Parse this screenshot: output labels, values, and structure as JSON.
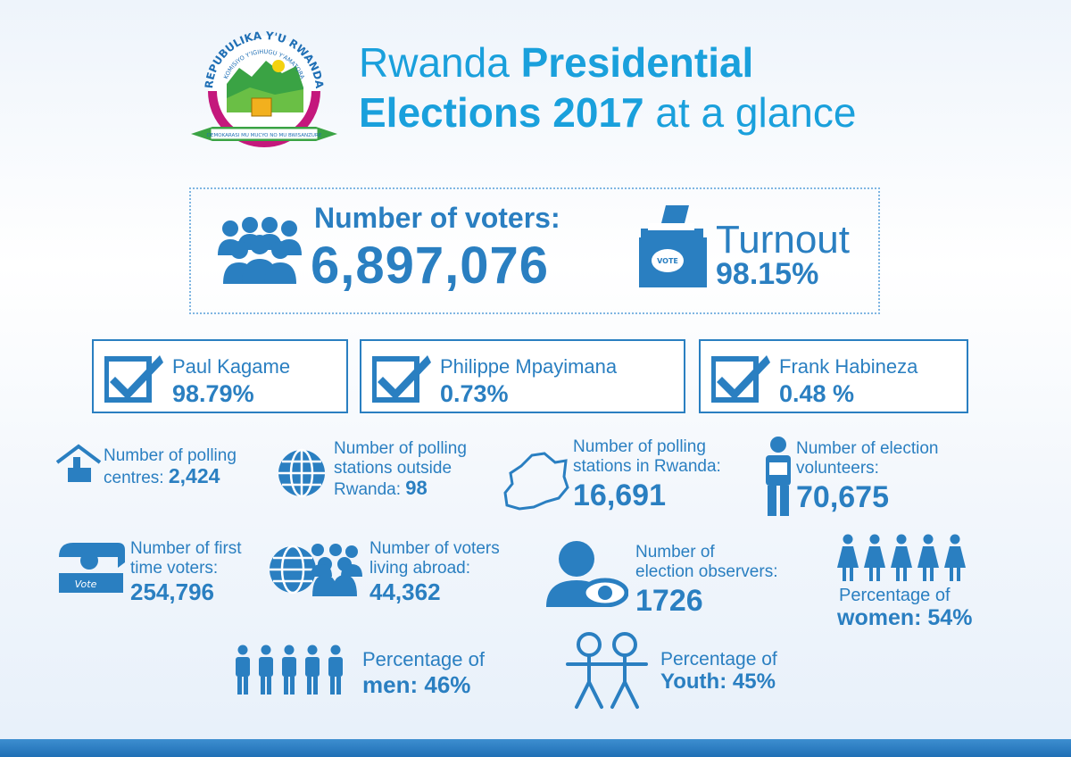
{
  "seal": {
    "top_text": "REPUBULIKA Y'U RWANDA",
    "inner_text": "KOMISIYO Y'IGIHUGU Y'AMATORA",
    "ribbon_text": "DEMOKARASI MU MUCYO NO MU BWISANZURE"
  },
  "title": {
    "line1_regular": "Rwanda ",
    "line1_bold": "Presidential",
    "line2_bold": "Elections 2017",
    "line2_regular": " at a glance"
  },
  "voters": {
    "label": "Number of voters:",
    "value": "6,897,076"
  },
  "turnout": {
    "label": "Turnout",
    "value": "98.15%",
    "ballot_text": "VOTE"
  },
  "candidates": [
    {
      "name": "Paul Kagame",
      "pct": "98.79%"
    },
    {
      "name": "Philippe Mpayimana",
      "pct": "0.73%"
    },
    {
      "name": "Frank Habineza",
      "pct": "0.48 %"
    }
  ],
  "stats": {
    "polling_centres": {
      "line1": "Number of polling",
      "line2": "centres:",
      "value": "2,424"
    },
    "stations_outside": {
      "line1": "Number of polling",
      "line2": "stations outside",
      "line3": "Rwanda:",
      "value": "98"
    },
    "stations_rwanda": {
      "line1": "Number of polling",
      "line2": "stations in Rwanda:",
      "value": "16,691"
    },
    "volunteers": {
      "line1": "Number of election",
      "line2": "volunteers:",
      "value": "70,675"
    },
    "first_time": {
      "line1": "Number of first",
      "line2": "time voters:",
      "value": "254,796",
      "icon_text": "Vote"
    },
    "abroad": {
      "line1": "Number of voters",
      "line2": "living abroad:",
      "value": "44,362"
    },
    "observers": {
      "line1": "Number of",
      "line2": "election observers:",
      "value": "1726"
    },
    "women": {
      "line1": "Percentage of",
      "label": "women:",
      "value": "54%"
    },
    "men": {
      "line1": "Percentage of",
      "label": "men:",
      "value": "46%"
    },
    "youth": {
      "line1": "Percentage of",
      "label": "Youth:",
      "value": "45%"
    }
  },
  "colors": {
    "primary": "#2a7fc1",
    "title": "#1aa0dc",
    "seal_green": "#3aa344",
    "seal_magenta": "#c4187c"
  }
}
